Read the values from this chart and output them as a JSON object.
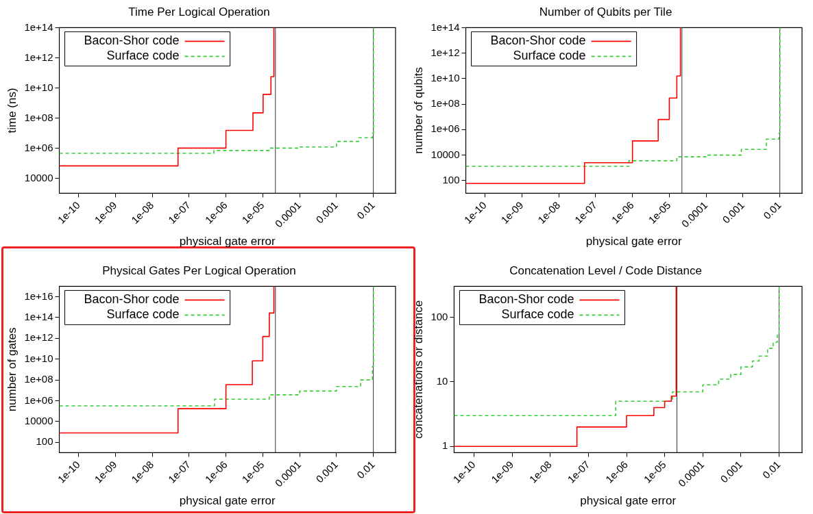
{
  "chart_data": [
    {
      "type": "step",
      "title": "Time Per Logical Operation",
      "xlabel": "physical gate error",
      "ylabel": "time (ns)",
      "log": "xy",
      "grid": false,
      "legend": "top left",
      "marker": "none",
      "xlim": [
        3e-11,
        0.04
      ],
      "xticks": [
        {
          "value": 1e-10,
          "label": "1e-10"
        },
        {
          "value": 1e-09,
          "label": "1e-09"
        },
        {
          "value": 1e-08,
          "label": "1e-08"
        },
        {
          "value": 1e-07,
          "label": "1e-07"
        },
        {
          "value": 1e-06,
          "label": "1e-06"
        },
        {
          "value": 1e-05,
          "label": "1e-05"
        },
        0.0001,
        0.001,
        0.01
      ],
      "ylim": [
        1000,
        100000000000000.0
      ],
      "yticks": [
        10000,
        {
          "value": 1000000.0,
          "label": "1e+06"
        },
        {
          "value": 100000000.0,
          "label": "1e+08"
        },
        {
          "value": 10000000000.0,
          "label": "1e+10"
        },
        {
          "value": 1000000000000.0,
          "label": "1e+12"
        },
        {
          "value": 100000000000000.0,
          "label": "1e+14"
        }
      ],
      "ref_lines": [
        {
          "axis": "x",
          "value": 2.2e-05,
          "color": "#333333"
        },
        {
          "axis": "x",
          "value": 0.01,
          "color": "#333333"
        }
      ],
      "series": [
        {
          "name": "Bacon-Shor code",
          "color": "#ff0000",
          "line_style": "solid",
          "x": [
            3e-11,
            5e-08,
            1e-06,
            5.4e-06,
            1.02e-05,
            1.66e-05,
            2e-05
          ],
          "values": [
            66000.0,
            1000000.0,
            15000000.0,
            220000000.0,
            3700000000.0,
            56000000000.0,
            100000000000000.0
          ]
        },
        {
          "name": "Surface code",
          "color": "#33cc33",
          "line_style": "dashed",
          "x": [
            3e-11,
            4.7e-07,
            1.5e-05,
            0.0001,
            0.001,
            0.004,
            0.0095,
            0.01
          ],
          "values": [
            450000.0,
            700000.0,
            1000000.0,
            1200000.0,
            2800000.0,
            4900000.0,
            9500000.0,
            100000000000000.0
          ]
        }
      ]
    },
    {
      "type": "step",
      "title": "Number of Qubits per Tile",
      "xlabel": "physical gate error",
      "ylabel": "number of qubits",
      "log": "xy",
      "grid": false,
      "legend": "top left",
      "marker": "none",
      "xlim": [
        3e-11,
        0.04
      ],
      "xticks": [
        {
          "value": 1e-10,
          "label": "1e-10"
        },
        {
          "value": 1e-09,
          "label": "1e-09"
        },
        {
          "value": 1e-08,
          "label": "1e-08"
        },
        {
          "value": 1e-07,
          "label": "1e-07"
        },
        {
          "value": 1e-06,
          "label": "1e-06"
        },
        {
          "value": 1e-05,
          "label": "1e-05"
        },
        0.0001,
        0.001,
        0.01
      ],
      "ylim": [
        10,
        100000000000000.0
      ],
      "yticks": [
        100,
        10000,
        {
          "value": 1000000.0,
          "label": "1e+06"
        },
        {
          "value": 100000000.0,
          "label": "1e+08"
        },
        {
          "value": 10000000000.0,
          "label": "1e+10"
        },
        {
          "value": 1000000000000.0,
          "label": "1e+12"
        },
        {
          "value": 100000000000000.0,
          "label": "1e+14"
        }
      ],
      "ref_lines": [
        {
          "axis": "x",
          "value": 2.2e-05,
          "color": "#333333"
        },
        {
          "axis": "x",
          "value": 0.01,
          "color": "#333333"
        }
      ],
      "series": [
        {
          "name": "Bacon-Shor code",
          "color": "#ff0000",
          "line_style": "solid",
          "x": [
            3e-11,
            5e-08,
            1e-06,
            5e-06,
            1e-05,
            1.6e-05,
            2e-05
          ],
          "values": [
            60,
            2500,
            130000.0,
            6200000.0,
            300000000.0,
            16000000000.0,
            100000000000000.0
          ]
        },
        {
          "name": "Surface code",
          "color": "#33cc33",
          "line_style": "dashed",
          "x": [
            3e-11,
            8e-07,
            1.6e-05,
            0.0001,
            0.0009,
            0.0043,
            0.0095,
            0.01
          ],
          "values": [
            1300,
            3600,
            7300,
            10000.0,
            28000.0,
            180000.0,
            520000.0,
            100000000000000.0
          ]
        }
      ]
    },
    {
      "type": "step",
      "title": "Physical Gates Per Logical Operation",
      "xlabel": "physical gate error",
      "ylabel": "number of gates",
      "log": "xy",
      "grid": false,
      "legend": "top left",
      "marker": "none",
      "xlim": [
        3e-11,
        0.04
      ],
      "xticks": [
        {
          "value": 1e-10,
          "label": "1e-10"
        },
        {
          "value": 1e-09,
          "label": "1e-09"
        },
        {
          "value": 1e-08,
          "label": "1e-08"
        },
        {
          "value": 1e-07,
          "label": "1e-07"
        },
        {
          "value": 1e-06,
          "label": "1e-06"
        },
        {
          "value": 1e-05,
          "label": "1e-05"
        },
        0.0001,
        0.001,
        0.01
      ],
      "ylim": [
        10,
        1e+17
      ],
      "yticks": [
        100,
        10000,
        {
          "value": 1000000.0,
          "label": "1e+06"
        },
        {
          "value": 100000000.0,
          "label": "1e+08"
        },
        {
          "value": 10000000000.0,
          "label": "1e+10"
        },
        {
          "value": 1000000000000.0,
          "label": "1e+12"
        },
        {
          "value": 100000000000000.0,
          "label": "1e+14"
        },
        {
          "value": 1e+16,
          "label": "1e+16"
        }
      ],
      "ref_lines": [
        {
          "axis": "x",
          "value": 2.2e-05,
          "color": "#333333"
        },
        {
          "axis": "x",
          "value": 0.01,
          "color": "#333333"
        }
      ],
      "series": [
        {
          "name": "Bacon-Shor code",
          "color": "#ff0000",
          "line_style": "solid",
          "x": [
            3e-11,
            5e-08,
            1e-06,
            5.2e-06,
            1e-05,
            1.5e-05,
            2e-05
          ],
          "values": [
            800,
            170000.0,
            35000000.0,
            6800000000.0,
            1500000000000.0,
            270000000000000.0,
            1e+17
          ]
        },
        {
          "name": "Surface code",
          "color": "#33cc33",
          "line_style": "dashed",
          "x": [
            3e-11,
            4.9e-07,
            1.5e-05,
            0.0001,
            0.001,
            0.0045,
            0.0095,
            0.01
          ],
          "values": [
            320000.0,
            1400000.0,
            3700000.0,
            8500000.0,
            23000000.0,
            100000000.0,
            2000000000.0,
            1e+17
          ]
        }
      ]
    },
    {
      "type": "step",
      "title": "Concatenation Level / Code Distance",
      "xlabel": "physical gate error",
      "ylabel": "concatenations or distance",
      "log": "xy",
      "grid": false,
      "legend": "top left",
      "marker": "none",
      "xlim": [
        3e-11,
        0.04
      ],
      "xticks": [
        {
          "value": 1e-10,
          "label": "1e-10"
        },
        {
          "value": 1e-09,
          "label": "1e-09"
        },
        {
          "value": 1e-08,
          "label": "1e-08"
        },
        {
          "value": 1e-07,
          "label": "1e-07"
        },
        {
          "value": 1e-06,
          "label": "1e-06"
        },
        {
          "value": 1e-05,
          "label": "1e-05"
        },
        0.0001,
        0.001,
        0.01
      ],
      "ylim": [
        0.8,
        300
      ],
      "yticks": [
        1,
        10,
        100
      ],
      "ref_lines": [
        {
          "axis": "x",
          "value": 2.1e-05,
          "color": "#333333"
        },
        {
          "axis": "x",
          "value": 0.01,
          "color": "#333333"
        }
      ],
      "series": [
        {
          "name": "Bacon-Shor code",
          "color": "#ff0000",
          "line_style": "solid",
          "x": [
            3e-11,
            5e-08,
            1e-06,
            5.2e-06,
            1e-05,
            1.5e-05,
            2e-05
          ],
          "values": [
            1,
            2,
            3,
            4,
            5,
            6,
            300
          ]
        },
        {
          "name": "Surface code",
          "color": "#33cc33",
          "line_style": "dashed",
          "x": [
            3e-11,
            5.2e-07,
            1.6e-05,
            0.0001,
            0.00026,
            0.00054,
            0.001,
            0.002,
            0.003,
            0.005,
            0.007,
            0.009,
            0.01
          ],
          "values": [
            3,
            5,
            7,
            9,
            11,
            13,
            17,
            21,
            25,
            33,
            41,
            57,
            300
          ]
        }
      ]
    }
  ]
}
